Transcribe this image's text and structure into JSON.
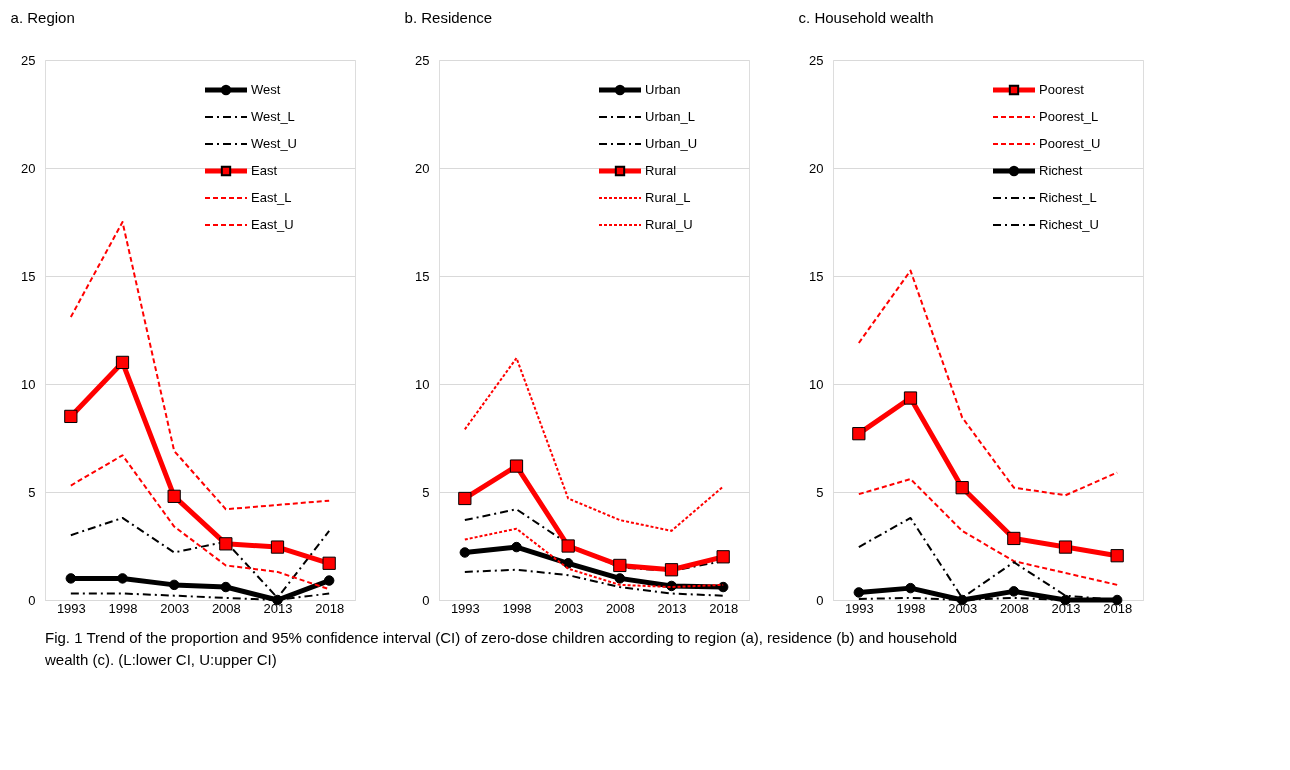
{
  "chart_data": [
    {
      "type": "line",
      "title": "a.   Region",
      "categories": [
        "1993",
        "1998",
        "2003",
        "2008",
        "2013",
        "2018"
      ],
      "ylim": [
        0,
        25
      ],
      "yticks": [
        0,
        5,
        10,
        15,
        20,
        25
      ],
      "grid": "y",
      "legend": "top right",
      "annotations": [
        "Fig. 1  Trend of the proportion and 95% confidence interval (CI) of zero-dose children according to region (a), residence (b) and household wealth (c). (L:lower CI, U:upper CI)"
      ],
      "series": [
        {
          "name": "West",
          "color": "#000000",
          "values": [
            1.0,
            1.0,
            0.7,
            0.6,
            0,
            0.9
          ],
          "marker": "circle",
          "line_style": "solid"
        },
        {
          "name": "West_L",
          "color": "#000000",
          "values": [
            0.3,
            0.3,
            0.2,
            0.1,
            0,
            0.3
          ],
          "marker": "none",
          "line_style": "dashdot"
        },
        {
          "name": "West_U",
          "color": "#000000",
          "values": [
            3.0,
            3.8,
            2.2,
            2.7,
            0.1,
            3.2
          ],
          "marker": "none",
          "line_style": "dashdot"
        },
        {
          "name": "East",
          "color": "#ff0000",
          "values": [
            8.5,
            11.0,
            4.8,
            2.6,
            2.45,
            1.7
          ],
          "marker": "square",
          "line_style": "solid"
        },
        {
          "name": "East_L",
          "color": "#ff0000",
          "values": [
            5.3,
            6.7,
            3.4,
            1.6,
            1.3,
            0.5
          ],
          "marker": "none",
          "line_style": "dashed"
        },
        {
          "name": "East_U",
          "color": "#ff0000",
          "values": [
            13.1,
            17.5,
            6.9,
            4.2,
            4.4,
            4.6
          ],
          "marker": "none",
          "line_style": "dashed"
        }
      ]
    },
    {
      "type": "line",
      "title": "b.   Residence",
      "categories": [
        "1993",
        "1998",
        "2003",
        "2008",
        "2013",
        "2018"
      ],
      "ylim": [
        0,
        25
      ],
      "yticks": [
        0,
        5,
        10,
        15,
        20,
        25
      ],
      "grid": "y",
      "legend": "top right",
      "series": [
        {
          "name": "Urban",
          "color": "#000000",
          "values": [
            2.2,
            2.45,
            1.7,
            1.0,
            0.65,
            0.6
          ],
          "marker": "circle",
          "line_style": "solid"
        },
        {
          "name": "Urban_L",
          "color": "#000000",
          "values": [
            1.3,
            1.4,
            1.15,
            0.6,
            0.3,
            0.2
          ],
          "marker": "none",
          "line_style": "dashdot"
        },
        {
          "name": "Urban_U",
          "color": "#000000",
          "values": [
            3.7,
            4.2,
            2.6,
            1.5,
            1.35,
            1.8
          ],
          "marker": "none",
          "line_style": "dashdot"
        },
        {
          "name": "Rural",
          "color": "#ff0000",
          "values": [
            4.7,
            6.2,
            2.5,
            1.6,
            1.4,
            2.0
          ],
          "marker": "square",
          "line_style": "solid"
        },
        {
          "name": "Rural_L",
          "color": "#ff0000",
          "values": [
            2.8,
            3.3,
            1.45,
            0.7,
            0.6,
            0.7
          ],
          "marker": "none",
          "line_style": "dotted"
        },
        {
          "name": "Rural_U",
          "color": "#ff0000",
          "values": [
            7.9,
            11.2,
            4.7,
            3.7,
            3.2,
            5.25
          ],
          "marker": "none",
          "line_style": "dotted"
        }
      ]
    },
    {
      "type": "line",
      "title": "c.   Household wealth",
      "categories": [
        "1993",
        "1998",
        "2003",
        "2008",
        "2013",
        "2018"
      ],
      "ylim": [
        0,
        25
      ],
      "yticks": [
        0,
        5,
        10,
        15,
        20,
        25
      ],
      "grid": "y",
      "legend": "top right",
      "series": [
        {
          "name": "Poorest",
          "color": "#ff0000",
          "values": [
            7.7,
            9.35,
            5.2,
            2.85,
            2.45,
            2.05
          ],
          "marker": "square",
          "line_style": "solid"
        },
        {
          "name": "Poorest_L",
          "color": "#ff0000",
          "values": [
            4.9,
            5.6,
            3.2,
            1.8,
            1.25,
            0.7
          ],
          "marker": "none",
          "line_style": "dashed"
        },
        {
          "name": "Poorest_U",
          "color": "#ff0000",
          "values": [
            11.9,
            15.25,
            8.45,
            5.2,
            4.85,
            5.9
          ],
          "marker": "none",
          "line_style": "dashed"
        },
        {
          "name": "Richest",
          "color": "#000000",
          "values": [
            0.35,
            0.55,
            0,
            0.4,
            0,
            0
          ],
          "marker": "circle",
          "line_style": "solid"
        },
        {
          "name": "Richest_L",
          "color": "#000000",
          "values": [
            0.05,
            0.1,
            0,
            0.1,
            0,
            0
          ],
          "marker": "none",
          "line_style": "dashdot"
        },
        {
          "name": "Richest_U",
          "color": "#000000",
          "values": [
            2.45,
            3.8,
            0.1,
            1.75,
            0.2,
            0
          ],
          "marker": "none",
          "line_style": "dashdot"
        }
      ]
    }
  ]
}
